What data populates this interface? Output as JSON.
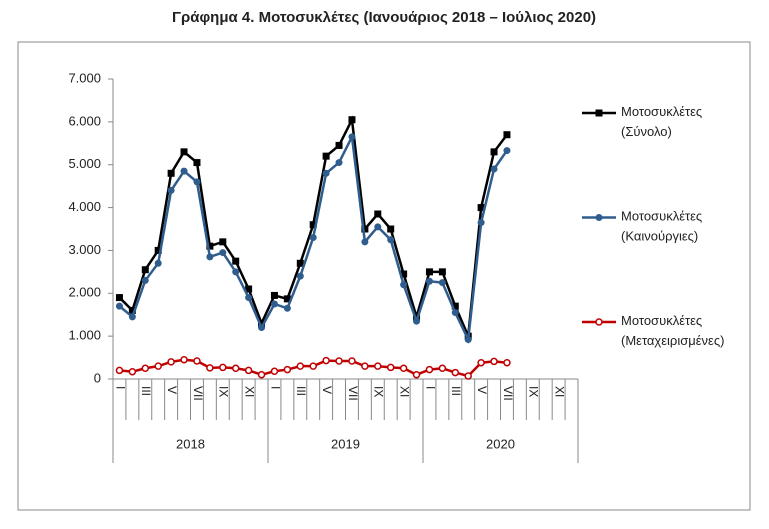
{
  "chart_data": {
    "type": "line",
    "title": "Γράφημα 4. Μοτοσυκλέτες (Ιανουάριος 2018 – Ιούλιος 2020)",
    "categories": [
      "I",
      null,
      "III",
      null,
      "V",
      null,
      "VII",
      null,
      "IX",
      null,
      "XI",
      null,
      "I",
      null,
      "III",
      null,
      "V",
      null,
      "VII",
      null,
      "IX",
      null,
      "XI",
      null,
      "I",
      null,
      "III",
      null,
      "V",
      null,
      "VII",
      null,
      "IX",
      null,
      "XI",
      null
    ],
    "category_groups": [
      "2018",
      "2019",
      "2020"
    ],
    "series": [
      {
        "name": "Μοτοσυκλέτες (Σύνολο)",
        "color": "#000000",
        "marker": "square",
        "values": [
          1900,
          1600,
          2550,
          3000,
          4800,
          5300,
          5050,
          3100,
          3200,
          2750,
          2100,
          1300,
          1950,
          1870,
          2700,
          3600,
          5200,
          5450,
          6050,
          3500,
          3850,
          3500,
          2450,
          1450,
          2500,
          2500,
          1700,
          1000,
          4000,
          5300,
          5700,
          null,
          null,
          null,
          null,
          null
        ]
      },
      {
        "name": "Μοτοσυκλέτες (Καινούργιες)",
        "color": "#2f5d8e",
        "marker": "circle",
        "values": [
          1700,
          1450,
          2300,
          2700,
          4400,
          4850,
          4600,
          2850,
          2950,
          2500,
          1900,
          1200,
          1750,
          1650,
          2400,
          3300,
          4800,
          5050,
          5650,
          3200,
          3550,
          3250,
          2200,
          1350,
          2280,
          2250,
          1550,
          920,
          3650,
          4900,
          5330,
          null,
          null,
          null,
          null,
          null
        ]
      },
      {
        "name": "Μοτοσυκλέτες (Μεταχειρισμένες)",
        "color": "#c00000",
        "marker": "hollow-circle",
        "values": [
          200,
          170,
          250,
          300,
          400,
          450,
          420,
          260,
          270,
          250,
          200,
          100,
          180,
          220,
          300,
          300,
          430,
          420,
          420,
          300,
          300,
          270,
          250,
          100,
          220,
          250,
          150,
          70,
          380,
          410,
          380,
          null,
          null,
          null,
          null,
          null
        ]
      }
    ],
    "ylim": [
      0,
      7000
    ],
    "yticks": [
      0,
      {
        "value": 1000,
        "label": "1.000"
      },
      {
        "value": 2000,
        "label": "2.000"
      },
      {
        "value": 3000,
        "label": "3.000"
      },
      {
        "value": 4000,
        "label": "4.000"
      },
      {
        "value": 5000,
        "label": "5.000"
      },
      {
        "value": 6000,
        "label": "6.000"
      },
      {
        "value": 7000,
        "label": "7.000"
      }
    ],
    "grid": false,
    "legend": "right"
  }
}
